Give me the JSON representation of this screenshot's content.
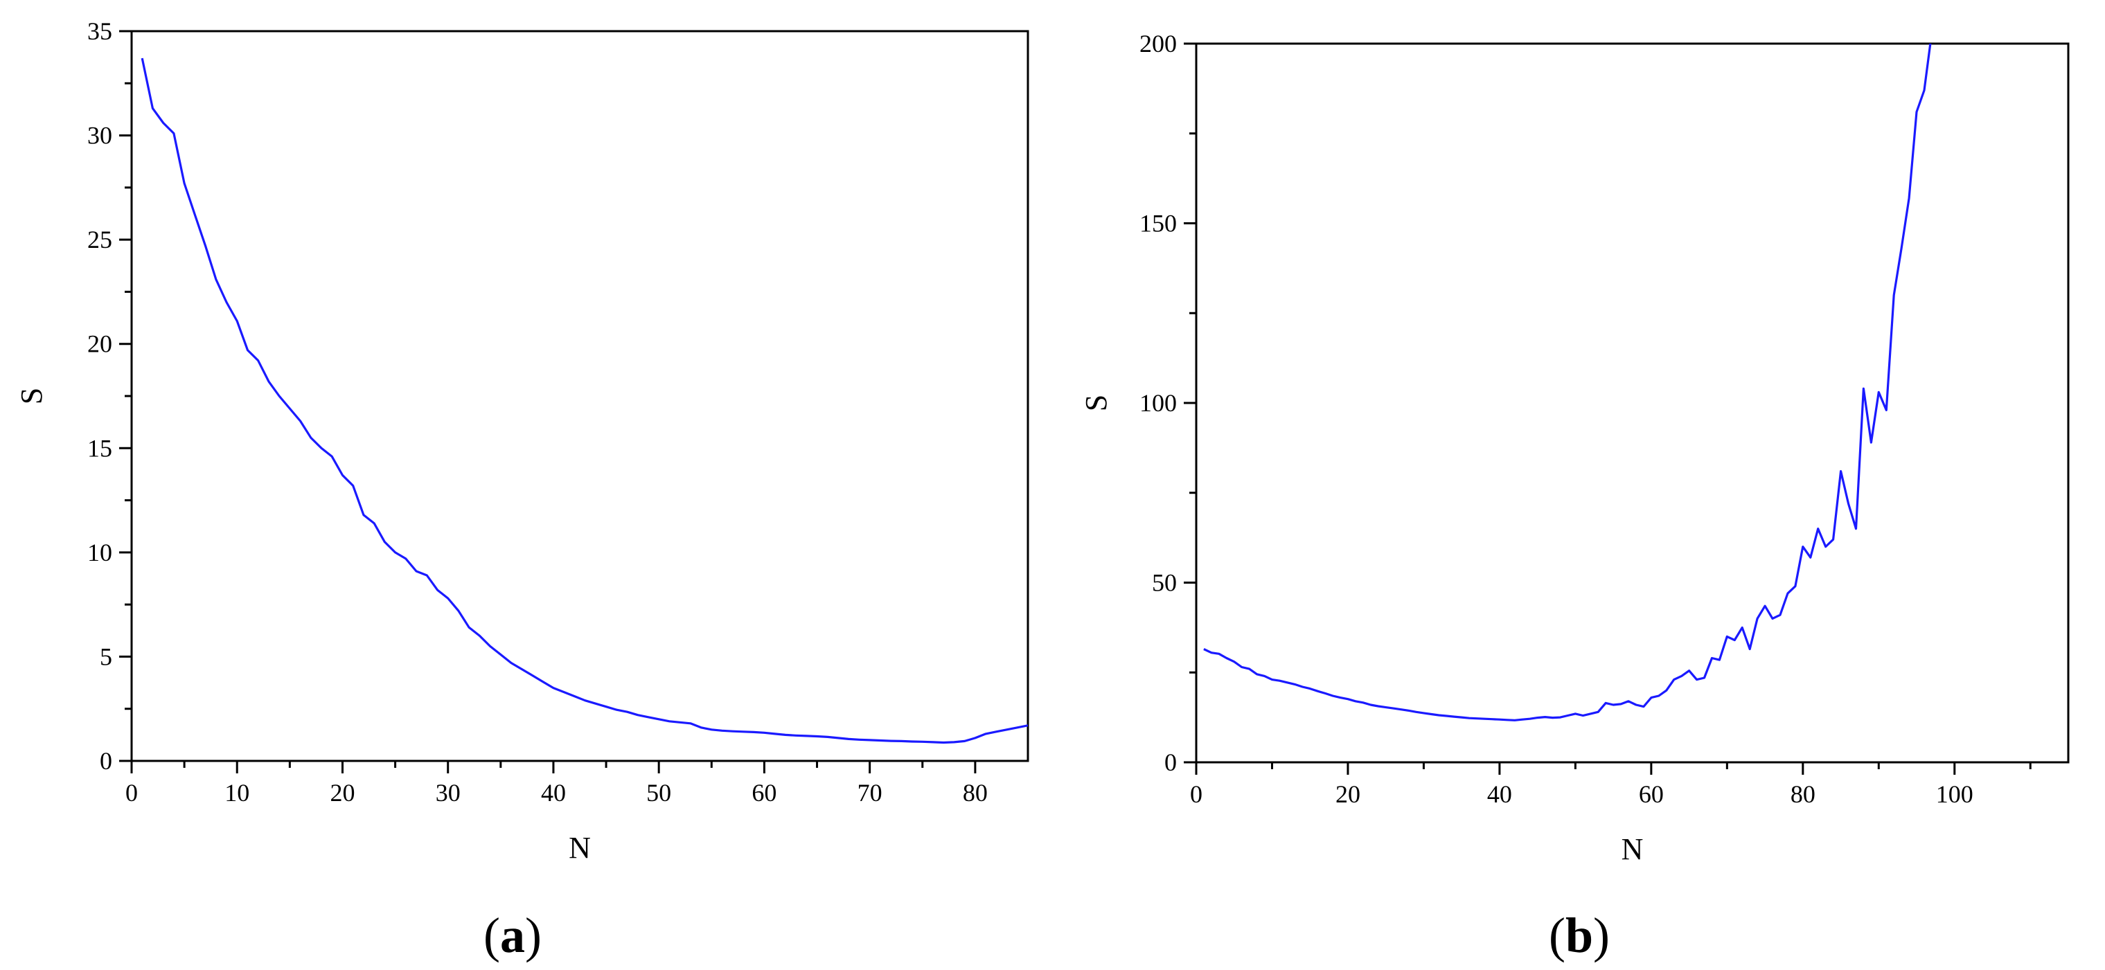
{
  "figure": {
    "panels": [
      {
        "paren_open": "(",
        "letter": "a",
        "paren_close": ")"
      },
      {
        "paren_open": "(",
        "letter": "b",
        "paren_close": ")"
      }
    ]
  },
  "chart_data": [
    {
      "type": "line",
      "title": "",
      "xlabel": "N",
      "ylabel": "S",
      "xlim": [
        0,
        85
      ],
      "ylim": [
        0,
        35
      ],
      "xticks": [
        0,
        10,
        20,
        30,
        40,
        50,
        60,
        70,
        80
      ],
      "yticks": [
        0,
        5,
        10,
        15,
        20,
        25,
        30,
        35
      ],
      "xminor": [
        5,
        15,
        25,
        35,
        45,
        55,
        65,
        75
      ],
      "yminor": [
        2.5,
        7.5,
        12.5,
        17.5,
        22.5,
        27.5,
        32.5
      ],
      "grid": false,
      "line_color": "#1a1aff",
      "series": [
        {
          "x": [
            1,
            2,
            3,
            4,
            5,
            6,
            7,
            8,
            9,
            10,
            11,
            12,
            13,
            14,
            15,
            16,
            17,
            18,
            19,
            20,
            21,
            22,
            23,
            24,
            25,
            26,
            27,
            28,
            29,
            30,
            31,
            32,
            33,
            34,
            35,
            36,
            37,
            38,
            39,
            40,
            41,
            42,
            43,
            44,
            45,
            46,
            47,
            48,
            49,
            50,
            51,
            52,
            53,
            54,
            55,
            56,
            57,
            58,
            59,
            60,
            61,
            62,
            63,
            64,
            65,
            66,
            67,
            68,
            69,
            70,
            71,
            72,
            73,
            74,
            75,
            76,
            77,
            78,
            79,
            80,
            81,
            82,
            83,
            84,
            85
          ],
          "values": [
            33.7,
            31.3,
            30.6,
            30.1,
            27.7,
            26.2,
            24.7,
            23.1,
            22.0,
            21.1,
            19.7,
            19.2,
            18.2,
            17.5,
            16.9,
            16.3,
            15.5,
            15.0,
            14.6,
            13.7,
            13.2,
            11.8,
            11.4,
            10.5,
            10.0,
            9.7,
            9.1,
            8.9,
            8.2,
            7.8,
            7.2,
            6.4,
            6.0,
            5.5,
            5.1,
            4.7,
            4.4,
            4.1,
            3.8,
            3.5,
            3.3,
            3.1,
            2.9,
            2.75,
            2.6,
            2.45,
            2.35,
            2.2,
            2.1,
            2.0,
            1.9,
            1.85,
            1.8,
            1.6,
            1.5,
            1.45,
            1.42,
            1.4,
            1.38,
            1.35,
            1.3,
            1.25,
            1.22,
            1.2,
            1.18,
            1.15,
            1.1,
            1.05,
            1.02,
            1.0,
            0.98,
            0.96,
            0.95,
            0.93,
            0.92,
            0.9,
            0.88,
            0.9,
            0.95,
            1.1,
            1.3,
            1.4,
            1.5,
            1.6,
            1.7
          ]
        }
      ]
    },
    {
      "type": "line",
      "title": "",
      "xlabel": "N",
      "ylabel": "S",
      "xlim": [
        0,
        115
      ],
      "ylim": [
        0,
        200
      ],
      "xticks": [
        0,
        20,
        40,
        60,
        80,
        100
      ],
      "yticks": [
        0,
        50,
        100,
        150,
        200
      ],
      "xminor": [
        10,
        30,
        50,
        70,
        90,
        110
      ],
      "yminor": [
        25,
        75,
        125,
        175
      ],
      "grid": false,
      "line_color": "#1a1aff",
      "series": [
        {
          "x": [
            1,
            2,
            3,
            4,
            5,
            6,
            7,
            8,
            9,
            10,
            11,
            12,
            13,
            14,
            15,
            16,
            17,
            18,
            19,
            20,
            21,
            22,
            23,
            24,
            25,
            26,
            27,
            28,
            29,
            30,
            31,
            32,
            33,
            34,
            35,
            36,
            37,
            38,
            39,
            40,
            41,
            42,
            43,
            44,
            45,
            46,
            47,
            48,
            49,
            50,
            51,
            52,
            53,
            54,
            55,
            56,
            57,
            58,
            59,
            60,
            61,
            62,
            63,
            64,
            65,
            66,
            67,
            68,
            69,
            70,
            71,
            72,
            73,
            74,
            75,
            76,
            77,
            78,
            79,
            80,
            81,
            82,
            83,
            84,
            85,
            86,
            87,
            88,
            89,
            90,
            91,
            92,
            93,
            94,
            95,
            96,
            97
          ],
          "values": [
            31.5,
            30.5,
            30.2,
            29.0,
            28.0,
            26.5,
            26.0,
            24.5,
            24.0,
            23.0,
            22.7,
            22.2,
            21.7,
            21.0,
            20.5,
            19.8,
            19.2,
            18.5,
            18.0,
            17.6,
            17.0,
            16.6,
            16.0,
            15.6,
            15.3,
            15.0,
            14.7,
            14.4,
            14.0,
            13.7,
            13.4,
            13.1,
            12.9,
            12.7,
            12.5,
            12.3,
            12.2,
            12.1,
            12.0,
            11.9,
            11.8,
            11.7,
            11.9,
            12.1,
            12.4,
            12.6,
            12.4,
            12.5,
            13.0,
            13.5,
            13.0,
            13.5,
            14.0,
            16.5,
            16.0,
            16.2,
            17.0,
            16.0,
            15.5,
            18.0,
            18.5,
            20.0,
            23.0,
            24.0,
            25.5,
            23.0,
            23.5,
            29.0,
            28.5,
            35.0,
            34.0,
            37.5,
            31.5,
            40.0,
            43.5,
            40.0,
            41.0,
            47.0,
            49.0,
            60.0,
            57.0,
            65.0,
            60.0,
            62.0,
            81.0,
            72.0,
            65.0,
            104.0,
            89.0,
            103.0,
            98.0,
            130.0,
            143.0,
            157.0,
            181.0,
            187.0,
            203.0
          ]
        }
      ]
    }
  ]
}
